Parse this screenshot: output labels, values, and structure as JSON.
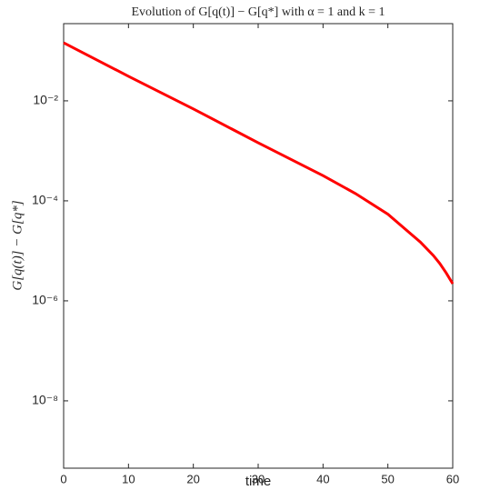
{
  "chart_data": {
    "type": "line",
    "title": "Evolution of G[q(t)] − G[q*] with α = 1 and k = 1",
    "xlabel": "time",
    "ylabel": "G[q(t)] − G[q*]",
    "x": [
      0,
      10,
      20,
      30,
      40,
      45,
      50,
      55,
      57,
      58,
      59,
      60
    ],
    "series": [
      {
        "name": "G[q(t)] − G[q*]",
        "color": "#ff0000",
        "values": [
          0.145,
          0.031,
          0.0069,
          0.00145,
          0.00032,
          0.00014,
          5.4e-05,
          1.5e-05,
          8.1e-06,
          5.6e-06,
          3.6e-06,
          2.2e-06
        ]
      }
    ],
    "xlim": [
      0,
      60
    ],
    "xticks": [
      0,
      10,
      20,
      30,
      40,
      50,
      60
    ],
    "ylim": [
      4.5e-10,
      0.35
    ],
    "yticks": [
      {
        "value": 1e-08,
        "label": "10⁻⁸"
      },
      {
        "value": 1e-06,
        "label": "10⁻⁶"
      },
      {
        "value": 0.0001,
        "label": "10⁻⁴"
      },
      {
        "value": 0.01,
        "label": "10⁻²"
      }
    ],
    "ylog": true,
    "grid": false
  }
}
